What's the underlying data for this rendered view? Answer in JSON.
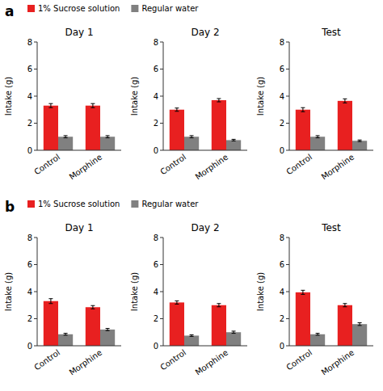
{
  "chart_data": [
    {
      "type": "bar",
      "title": "Day 1",
      "annotations": [
        "a"
      ],
      "legend": "upper left",
      "grid": false,
      "categories": [
        "Control",
        "Morphine"
      ],
      "series": [
        {
          "name": "1% Sucrose solution",
          "color": "#E82020",
          "values": [
            3.3,
            3.3
          ],
          "errors": [
            0.15,
            0.15
          ]
        },
        {
          "name": "Regular water",
          "color": "#808080",
          "values": [
            1.0,
            1.0
          ],
          "errors": [
            0.08,
            0.08
          ]
        }
      ],
      "ylim": [
        0,
        8
      ],
      "yticks": [
        0,
        2,
        4,
        6,
        8
      ],
      "ylabel": "Intake (g)"
    },
    {
      "type": "bar",
      "title": "Day 2",
      "grid": false,
      "categories": [
        "Control",
        "Morphine"
      ],
      "series": [
        {
          "name": "1% Sucrose solution",
          "color": "#E82020",
          "values": [
            3.0,
            3.7
          ],
          "errors": [
            0.12,
            0.12
          ]
        },
        {
          "name": "Regular water",
          "color": "#808080",
          "values": [
            1.0,
            0.75
          ],
          "errors": [
            0.08,
            0.06
          ]
        }
      ],
      "ylim": [
        0,
        8
      ],
      "yticks": [
        0,
        2,
        4,
        6,
        8
      ],
      "ylabel": "Intake (g)"
    },
    {
      "type": "bar",
      "title": "Test",
      "grid": false,
      "categories": [
        "Control",
        "Morphine"
      ],
      "series": [
        {
          "name": "1% Sucrose solution",
          "color": "#E82020",
          "values": [
            3.0,
            3.65
          ],
          "errors": [
            0.15,
            0.15
          ]
        },
        {
          "name": "Regular water",
          "color": "#808080",
          "values": [
            1.0,
            0.7
          ],
          "errors": [
            0.08,
            0.06
          ]
        }
      ],
      "ylim": [
        0,
        8
      ],
      "yticks": [
        0,
        2,
        4,
        6,
        8
      ],
      "ylabel": "Intake (g)"
    },
    {
      "type": "bar",
      "title": "Day 1",
      "annotations": [
        "b"
      ],
      "legend": "upper left",
      "grid": false,
      "categories": [
        "Control",
        "Morphine"
      ],
      "series": [
        {
          "name": "1% Sucrose solution",
          "color": "#E82020",
          "values": [
            3.3,
            2.85
          ],
          "errors": [
            0.18,
            0.12
          ]
        },
        {
          "name": "Regular water",
          "color": "#808080",
          "values": [
            0.85,
            1.2
          ],
          "errors": [
            0.07,
            0.08
          ]
        }
      ],
      "ylim": [
        0,
        8
      ],
      "yticks": [
        0,
        2,
        4,
        6,
        8
      ],
      "ylabel": "Intake (g)"
    },
    {
      "type": "bar",
      "title": "Day 2",
      "grid": false,
      "categories": [
        "Control",
        "Morphine"
      ],
      "series": [
        {
          "name": "1% Sucrose solution",
          "color": "#E82020",
          "values": [
            3.2,
            3.0
          ],
          "errors": [
            0.12,
            0.12
          ]
        },
        {
          "name": "Regular water",
          "color": "#808080",
          "values": [
            0.75,
            1.0
          ],
          "errors": [
            0.06,
            0.08
          ]
        }
      ],
      "ylim": [
        0,
        8
      ],
      "yticks": [
        0,
        2,
        4,
        6,
        8
      ],
      "ylabel": "Intake (g)"
    },
    {
      "type": "bar",
      "title": "Test",
      "grid": false,
      "categories": [
        "Control",
        "Morphine"
      ],
      "series": [
        {
          "name": "1% Sucrose solution",
          "color": "#E82020",
          "values": [
            3.95,
            3.0
          ],
          "errors": [
            0.15,
            0.12
          ]
        },
        {
          "name": "Regular water",
          "color": "#808080",
          "values": [
            0.85,
            1.6
          ],
          "errors": [
            0.07,
            0.1
          ]
        }
      ],
      "ylim": [
        0,
        8
      ],
      "yticks": [
        0,
        2,
        4,
        6,
        8
      ],
      "ylabel": "Intake (g)"
    }
  ]
}
